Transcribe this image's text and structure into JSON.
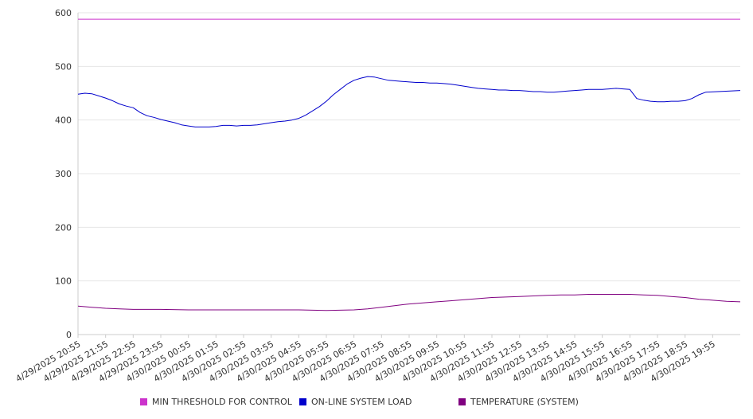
{
  "chart_data": {
    "type": "line",
    "title": "",
    "xlabel": "",
    "ylabel": "",
    "ylim": [
      0,
      600
    ],
    "yticks": [
      0,
      100,
      200,
      300,
      400,
      500,
      600
    ],
    "grid": true,
    "legend_position": "bottom",
    "x_labels": [
      "4/29/2025 20:55",
      "4/29/2025 21:55",
      "4/29/2025 22:55",
      "4/29/2025 23:55",
      "4/30/2025 00:55",
      "4/30/2025 01:55",
      "4/30/2025 02:55",
      "4/30/2025 03:55",
      "4/30/2025 04:55",
      "4/30/2025 05:55",
      "4/30/2025 06:55",
      "4/30/2025 07:55",
      "4/30/2025 08:55",
      "4/30/2025 09:55",
      "4/30/2025 10:55",
      "4/30/2025 11:55",
      "4/30/2025 12:55",
      "4/30/2025 13:55",
      "4/30/2025 14:55",
      "4/30/2025 15:55",
      "4/30/2025 16:55",
      "4/30/2025 17:55",
      "4/30/2025 18:55",
      "4/30/2025 19:55"
    ],
    "x_hours": [
      0,
      1,
      2,
      3,
      4,
      5,
      6,
      7,
      8,
      9,
      10,
      11,
      12,
      13,
      14,
      15,
      16,
      17,
      18,
      19,
      20,
      21,
      22,
      23
    ],
    "x_hours_range": [
      0,
      24
    ],
    "series": [
      {
        "name": "MIN THRESHOLD FOR CONTROL",
        "color": "#cc33cc",
        "points": [
          [
            0,
            588
          ],
          [
            24,
            588
          ]
        ]
      },
      {
        "name": "ON-LINE SYSTEM LOAD",
        "color": "#0000cc",
        "points": [
          [
            0,
            448
          ],
          [
            0.25,
            450
          ],
          [
            0.5,
            449
          ],
          [
            0.75,
            445
          ],
          [
            1,
            441
          ],
          [
            1.25,
            436
          ],
          [
            1.5,
            430
          ],
          [
            1.75,
            426
          ],
          [
            2,
            423
          ],
          [
            2.25,
            414
          ],
          [
            2.5,
            408
          ],
          [
            2.75,
            405
          ],
          [
            3,
            401
          ],
          [
            3.25,
            398
          ],
          [
            3.5,
            395
          ],
          [
            3.75,
            391
          ],
          [
            4,
            389
          ],
          [
            4.25,
            387
          ],
          [
            4.5,
            387
          ],
          [
            4.75,
            387
          ],
          [
            5,
            388
          ],
          [
            5.25,
            390
          ],
          [
            5.5,
            390
          ],
          [
            5.75,
            389
          ],
          [
            6,
            390
          ],
          [
            6.25,
            390
          ],
          [
            6.5,
            391
          ],
          [
            6.75,
            393
          ],
          [
            7,
            395
          ],
          [
            7.25,
            397
          ],
          [
            7.5,
            398
          ],
          [
            7.75,
            400
          ],
          [
            8,
            403
          ],
          [
            8.25,
            409
          ],
          [
            8.5,
            417
          ],
          [
            8.75,
            425
          ],
          [
            9,
            435
          ],
          [
            9.25,
            447
          ],
          [
            9.5,
            457
          ],
          [
            9.75,
            467
          ],
          [
            10,
            474
          ],
          [
            10.25,
            478
          ],
          [
            10.5,
            481
          ],
          [
            10.75,
            480
          ],
          [
            11,
            477
          ],
          [
            11.25,
            474
          ],
          [
            11.5,
            473
          ],
          [
            11.75,
            472
          ],
          [
            12,
            471
          ],
          [
            12.25,
            470
          ],
          [
            12.5,
            470
          ],
          [
            12.75,
            469
          ],
          [
            13,
            469
          ],
          [
            13.25,
            468
          ],
          [
            13.5,
            467
          ],
          [
            13.75,
            465
          ],
          [
            14,
            463
          ],
          [
            14.25,
            461
          ],
          [
            14.5,
            459
          ],
          [
            14.75,
            458
          ],
          [
            15,
            457
          ],
          [
            15.25,
            456
          ],
          [
            15.5,
            456
          ],
          [
            15.75,
            455
          ],
          [
            16,
            455
          ],
          [
            16.25,
            454
          ],
          [
            16.5,
            453
          ],
          [
            16.75,
            453
          ],
          [
            17,
            452
          ],
          [
            17.25,
            452
          ],
          [
            17.5,
            453
          ],
          [
            17.75,
            454
          ],
          [
            18,
            455
          ],
          [
            18.25,
            456
          ],
          [
            18.5,
            457
          ],
          [
            18.75,
            457
          ],
          [
            19,
            457
          ],
          [
            19.25,
            458
          ],
          [
            19.5,
            459
          ],
          [
            19.75,
            458
          ],
          [
            20,
            457
          ],
          [
            20.25,
            440
          ],
          [
            20.5,
            437
          ],
          [
            20.75,
            435
          ],
          [
            21,
            434
          ],
          [
            21.25,
            434
          ],
          [
            21.5,
            435
          ],
          [
            21.75,
            435
          ],
          [
            22,
            436
          ],
          [
            22.25,
            440
          ],
          [
            22.5,
            447
          ],
          [
            22.75,
            452
          ],
          [
            24,
            455
          ]
        ]
      },
      {
        "name": "TEMPERATURE (SYSTEM)",
        "color": "#800080",
        "points": [
          [
            0,
            53
          ],
          [
            0.5,
            51
          ],
          [
            1,
            49
          ],
          [
            1.5,
            48
          ],
          [
            2,
            47
          ],
          [
            3,
            47
          ],
          [
            4,
            46
          ],
          [
            5,
            46
          ],
          [
            6,
            46
          ],
          [
            7,
            46
          ],
          [
            8,
            46
          ],
          [
            9,
            45
          ],
          [
            10,
            46
          ],
          [
            10.5,
            48
          ],
          [
            11,
            51
          ],
          [
            11.5,
            54
          ],
          [
            12,
            57
          ],
          [
            12.5,
            59
          ],
          [
            13,
            61
          ],
          [
            13.5,
            63
          ],
          [
            14,
            65
          ],
          [
            14.5,
            67
          ],
          [
            15,
            69
          ],
          [
            15.5,
            70
          ],
          [
            16,
            71
          ],
          [
            16.5,
            72
          ],
          [
            17,
            73
          ],
          [
            17.5,
            74
          ],
          [
            18,
            74
          ],
          [
            18.5,
            75
          ],
          [
            19,
            75
          ],
          [
            19.5,
            75
          ],
          [
            20,
            75
          ],
          [
            20.5,
            74
          ],
          [
            21,
            73
          ],
          [
            21.5,
            71
          ],
          [
            22,
            69
          ],
          [
            22.5,
            66
          ],
          [
            23,
            64
          ],
          [
            23.5,
            62
          ],
          [
            24,
            61
          ]
        ]
      }
    ]
  },
  "legend": [
    {
      "label": "MIN THRESHOLD FOR CONTROL",
      "color": "#cc33cc"
    },
    {
      "label": "ON-LINE SYSTEM LOAD",
      "color": "#0000cc"
    },
    {
      "label": "TEMPERATURE (SYSTEM)",
      "color": "#800080"
    }
  ]
}
